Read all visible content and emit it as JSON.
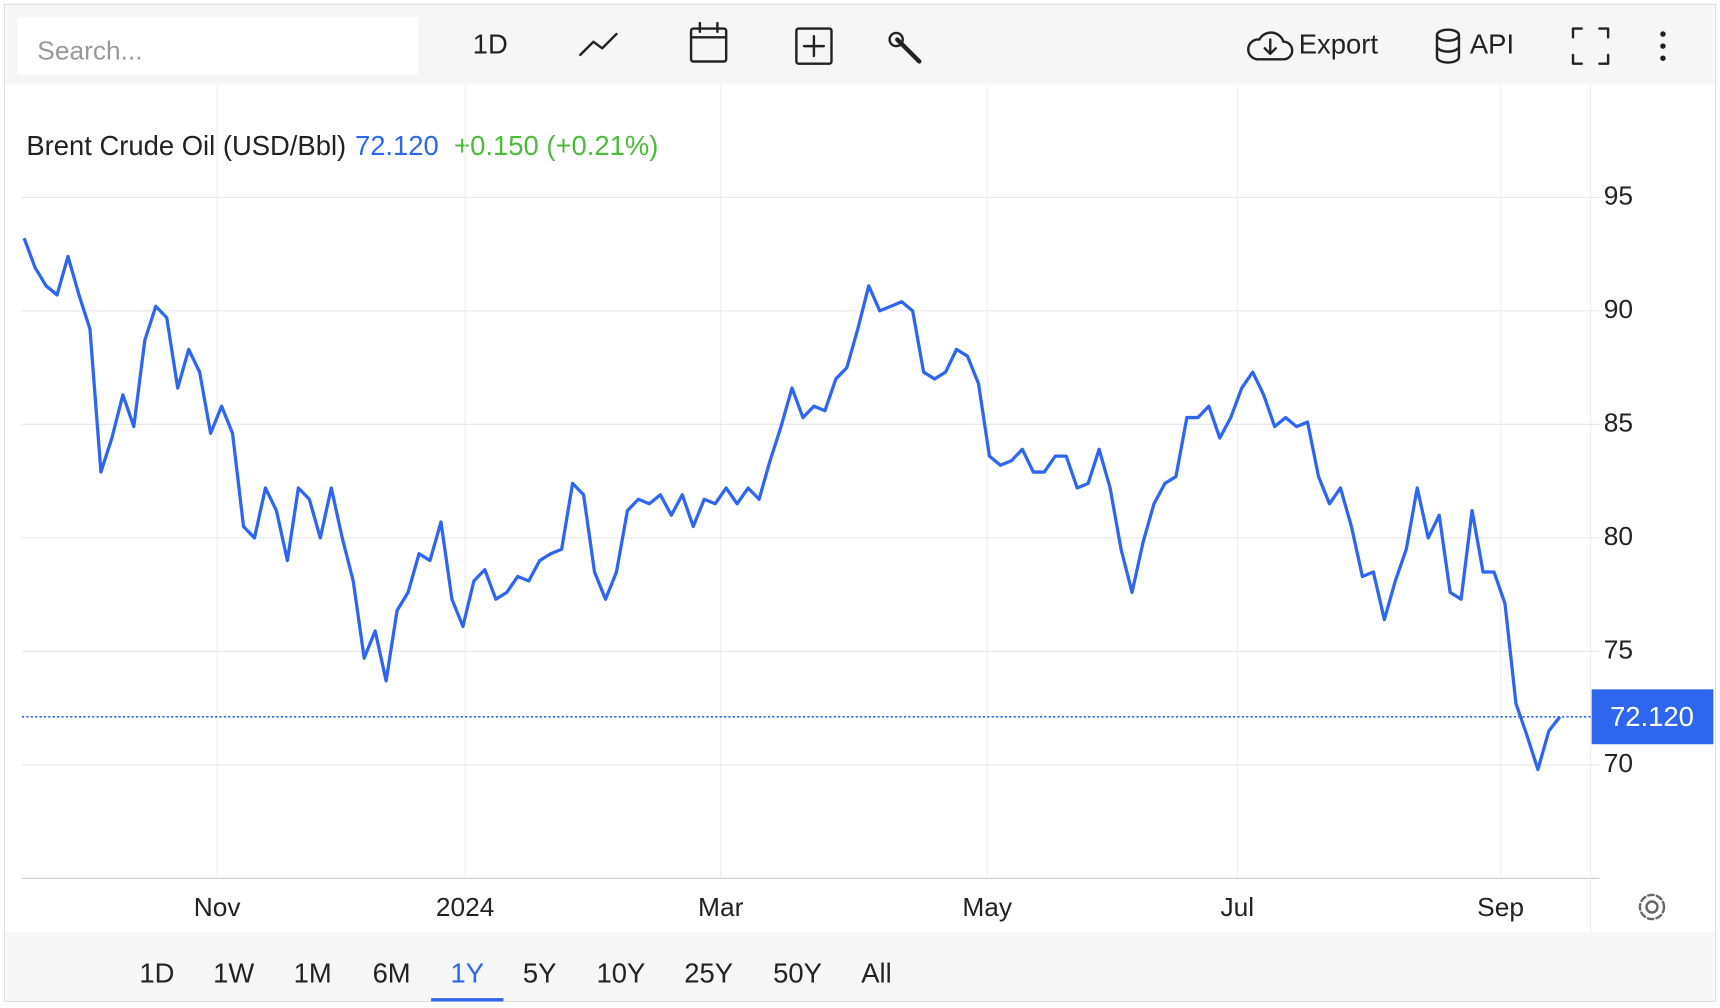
{
  "toolbar": {
    "search_placeholder": "Search...",
    "interval": "1D",
    "export": "Export",
    "api": "API"
  },
  "chart_data": {
    "type": "line",
    "title": "Brent Crude Oil (USD/Bbl)",
    "last_price": {
      "value": 72.12,
      "label": "72.120"
    },
    "change_label": "+0.150 (+0.21%)",
    "color": "#2f66f0",
    "grid": true,
    "xlim": [
      0,
      140
    ],
    "ylim": [
      65,
      99
    ],
    "yticks": [
      70,
      75,
      80,
      85,
      90,
      95
    ],
    "xticks": [
      {
        "value": 17.6,
        "label": "Nov"
      },
      {
        "value": 40.2,
        "label": "2024"
      },
      {
        "value": 63.5,
        "label": "Mar"
      },
      {
        "value": 87.8,
        "label": "May"
      },
      {
        "value": 110.6,
        "label": "Jul"
      },
      {
        "value": 134.6,
        "label": "Sep"
      }
    ],
    "values": [
      93.2,
      91.9,
      91.1,
      90.7,
      92.4,
      90.7,
      89.2,
      82.9,
      84.4,
      86.3,
      84.9,
      88.7,
      90.2,
      89.7,
      86.6,
      88.3,
      87.3,
      84.6,
      85.8,
      84.6,
      80.5,
      80.0,
      82.2,
      81.2,
      79.0,
      82.2,
      81.7,
      80.0,
      82.2,
      80.0,
      78.1,
      74.7,
      75.9,
      73.7,
      76.8,
      77.6,
      79.3,
      79.0,
      80.7,
      77.3,
      76.1,
      78.1,
      78.6,
      77.3,
      77.6,
      78.3,
      78.1,
      79.0,
      79.3,
      79.5,
      82.4,
      81.9,
      78.5,
      77.3,
      78.5,
      81.2,
      81.7,
      81.5,
      81.9,
      81.0,
      81.9,
      80.5,
      81.7,
      81.5,
      82.2,
      81.5,
      82.2,
      81.7,
      83.4,
      84.9,
      86.6,
      85.3,
      85.8,
      85.6,
      87.0,
      87.5,
      89.2,
      91.1,
      90.0,
      90.2,
      90.4,
      90.0,
      87.3,
      87.0,
      87.3,
      88.3,
      88.0,
      86.8,
      83.6,
      83.2,
      83.4,
      83.9,
      82.9,
      82.9,
      83.6,
      83.6,
      82.2,
      82.4,
      83.9,
      82.2,
      79.5,
      77.6,
      79.8,
      81.5,
      82.4,
      82.7,
      85.3,
      85.3,
      85.8,
      84.4,
      85.3,
      86.6,
      87.3,
      86.3,
      84.9,
      85.3,
      84.9,
      85.1,
      82.7,
      81.5,
      82.2,
      80.5,
      78.3,
      78.5,
      76.4,
      78.1,
      79.5,
      82.2,
      80.0,
      81.0,
      77.6,
      77.3,
      81.2,
      78.5,
      78.5,
      77.1,
      72.7,
      71.3,
      69.8,
      71.5,
      72.12
    ]
  },
  "ranges": {
    "items": [
      "1D",
      "1W",
      "1M",
      "6M",
      "1Y",
      "5Y",
      "10Y",
      "25Y",
      "50Y",
      "All"
    ],
    "selected": 4
  }
}
